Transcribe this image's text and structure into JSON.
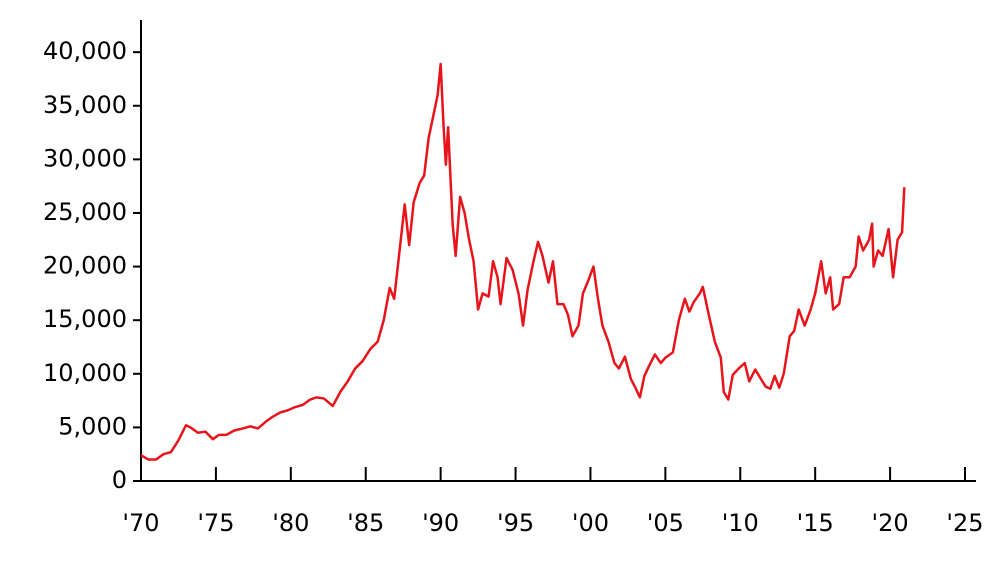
{
  "chart_data": {
    "type": "line",
    "color": "#e8141b",
    "x": [
      1970.0,
      1970.5,
      1971.0,
      1971.5,
      1972.0,
      1972.5,
      1973.0,
      1973.3,
      1973.8,
      1974.3,
      1974.8,
      1975.2,
      1975.7,
      1976.2,
      1976.8,
      1977.3,
      1977.8,
      1978.3,
      1978.8,
      1979.3,
      1979.8,
      1980.3,
      1980.8,
      1981.3,
      1981.7,
      1982.2,
      1982.8,
      1983.3,
      1983.8,
      1984.3,
      1984.8,
      1985.3,
      1985.8,
      1986.2,
      1986.6,
      1986.9,
      1987.3,
      1987.6,
      1987.9,
      1988.2,
      1988.6,
      1988.9,
      1989.2,
      1989.5,
      1989.8,
      1990.0,
      1990.2,
      1990.35,
      1990.5,
      1990.8,
      1991.0,
      1991.3,
      1991.6,
      1991.9,
      1992.2,
      1992.5,
      1992.8,
      1993.2,
      1993.5,
      1993.8,
      1994.0,
      1994.4,
      1994.8,
      1995.2,
      1995.5,
      1995.8,
      1996.2,
      1996.5,
      1996.8,
      1997.2,
      1997.5,
      1997.8,
      1998.2,
      1998.5,
      1998.8,
      1999.2,
      1999.5,
      1999.8,
      2000.2,
      2000.5,
      2000.8,
      2001.2,
      2001.6,
      2001.9,
      2002.3,
      2002.7,
      2003.0,
      2003.3,
      2003.6,
      2003.9,
      2004.3,
      2004.7,
      2005.0,
      2005.5,
      2005.9,
      2006.3,
      2006.6,
      2006.9,
      2007.3,
      2007.5,
      2007.9,
      2008.3,
      2008.7,
      2008.9,
      2009.2,
      2009.5,
      2009.9,
      2010.3,
      2010.6,
      2011.0,
      2011.3,
      2011.7,
      2012.0,
      2012.3,
      2012.6,
      2012.9,
      2013.3,
      2013.6,
      2013.9,
      2014.3,
      2014.7,
      2015.0,
      2015.4,
      2015.7,
      2016.0,
      2016.2,
      2016.6,
      2016.9,
      2017.3,
      2017.7,
      2017.9,
      2018.2,
      2018.6,
      2018.8,
      2018.9,
      2019.2,
      2019.5,
      2019.9,
      2020.2,
      2020.5,
      2020.8,
      2020.95
    ],
    "values": [
      2400,
      2000,
      2000,
      2500,
      2700,
      3800,
      5200,
      5000,
      4500,
      4600,
      3900,
      4300,
      4300,
      4700,
      4900,
      5100,
      4900,
      5500,
      6000,
      6400,
      6600,
      6900,
      7100,
      7600,
      7800,
      7700,
      7000,
      8300,
      9300,
      10500,
      11200,
      12300,
      13000,
      15000,
      18000,
      17000,
      22000,
      25800,
      22000,
      26000,
      27800,
      28500,
      32000,
      34000,
      36000,
      38900,
      33000,
      29500,
      33000,
      24000,
      21000,
      26500,
      25000,
      22500,
      20500,
      16000,
      17500,
      17200,
      20500,
      19000,
      16500,
      20800,
      19700,
      17500,
      14500,
      17800,
      20500,
      22300,
      21000,
      18500,
      20500,
      16500,
      16500,
      15500,
      13500,
      14500,
      17500,
      18500,
      20000,
      17000,
      14500,
      13000,
      11000,
      10500,
      11600,
      9500,
      8700,
      7800,
      9800,
      10700,
      11800,
      11000,
      11500,
      12000,
      15000,
      17000,
      15800,
      16700,
      17500,
      18100,
      15500,
      13000,
      11500,
      8300,
      7600,
      9900,
      10500,
      11000,
      9300,
      10400,
      9700,
      8800,
      8600,
      9800,
      8700,
      10000,
      13500,
      14000,
      16000,
      14500,
      16000,
      17500,
      20500,
      17500,
      19000,
      16000,
      16500,
      19000,
      19000,
      20000,
      22800,
      21500,
      22500,
      24000,
      20000,
      21500,
      21000,
      23500,
      19000,
      22500,
      23200,
      27400
    ],
    "xlim": [
      1970,
      2025
    ],
    "ylim": [
      0,
      43000
    ],
    "xticks": [
      {
        "value": 1970,
        "label": "'70"
      },
      {
        "value": 1975,
        "label": "'75"
      },
      {
        "value": 1980,
        "label": "'80"
      },
      {
        "value": 1985,
        "label": "'85"
      },
      {
        "value": 1990,
        "label": "'90"
      },
      {
        "value": 1995,
        "label": "'95"
      },
      {
        "value": 2000,
        "label": "'00"
      },
      {
        "value": 2005,
        "label": "'05"
      },
      {
        "value": 2010,
        "label": "'10"
      },
      {
        "value": 2015,
        "label": "'15"
      },
      {
        "value": 2020,
        "label": "'20"
      },
      {
        "value": 2025,
        "label": "'25"
      }
    ],
    "yticks": [
      0,
      {
        "value": 5000,
        "label": "5,000"
      },
      {
        "value": 10000,
        "label": "10,000"
      },
      {
        "value": 15000,
        "label": "15,000"
      },
      {
        "value": 20000,
        "label": "20,000"
      },
      {
        "value": 25000,
        "label": "25,000"
      },
      {
        "value": 30000,
        "label": "30,000"
      },
      {
        "value": 35000,
        "label": "35,000"
      },
      {
        "value": 40000,
        "label": "40,000"
      }
    ]
  }
}
